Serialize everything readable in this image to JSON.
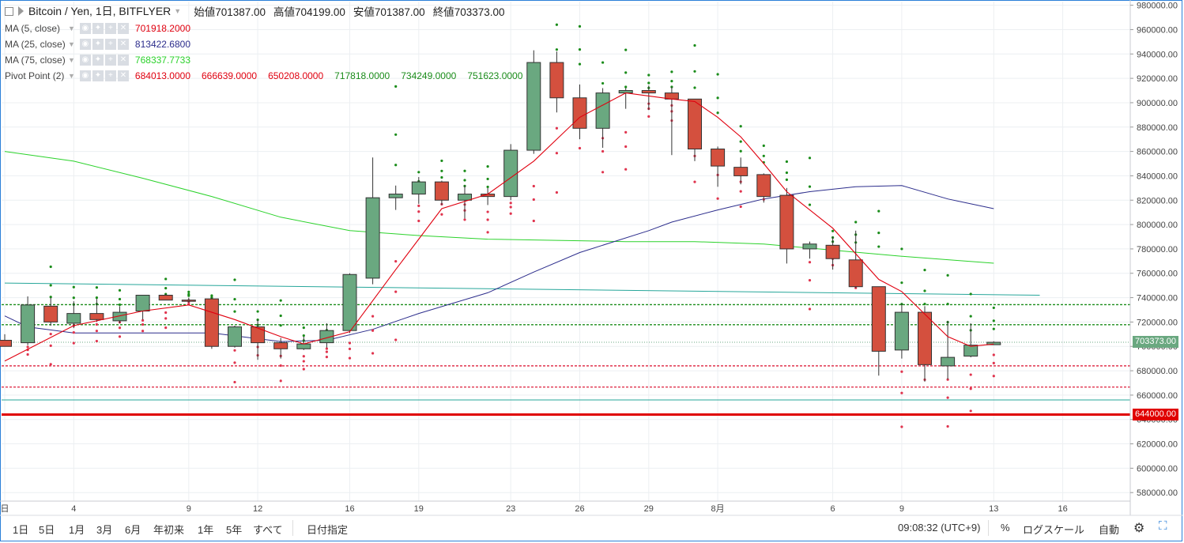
{
  "header": {
    "symbol_title": "Bitcoin / Yen, 1日, BITFLYER",
    "ohlc": [
      {
        "label": "始値",
        "value": "701387.00"
      },
      {
        "label": "高値",
        "value": "704199.00"
      },
      {
        "label": "安値",
        "value": "701387.00"
      },
      {
        "label": "終値",
        "value": "703373.00"
      }
    ]
  },
  "indicators": [
    {
      "name": "MA (5, close)",
      "values": [
        "701918.2000"
      ],
      "colors": [
        "#e0000f"
      ]
    },
    {
      "name": "MA (25, close)",
      "values": [
        "813422.6800"
      ],
      "colors": [
        "#2c2d8c"
      ]
    },
    {
      "name": "MA (75, close)",
      "values": [
        "768337.7733"
      ],
      "colors": [
        "#2bd22b"
      ]
    },
    {
      "name": "Pivot Point (2)",
      "values": [
        "684013.0000",
        "666639.0000",
        "650208.0000",
        "717818.0000",
        "734249.0000",
        "751623.0000"
      ],
      "colors": [
        "#e0000f",
        "#e0000f",
        "#e0000f",
        "#1a8c1a",
        "#1a8c1a",
        "#1a8c1a"
      ]
    }
  ],
  "price_tags": {
    "last": "703373.00",
    "line": "644000.00"
  },
  "colors": {
    "up": "#6aa880",
    "down": "#d4503e",
    "ma5": "#e0000f",
    "ma25": "#2c2d8c",
    "ma75": "#2bd22b",
    "pivot_up": "#1a8c1a",
    "pivot_down": "#e0344e",
    "teal_line": "#26a69a",
    "red_line": "#e00000"
  },
  "toolbar": {
    "ranges": [
      "1日",
      "5日",
      "1月",
      "3月",
      "6月",
      "年初来",
      "1年",
      "5年",
      "すべて"
    ],
    "goto_date": "日付指定",
    "clock": "09:08:32 (UTC+9)",
    "percent": "%",
    "log_scale": "ログスケール",
    "auto": "自動"
  },
  "chart_data": {
    "type": "candlestick",
    "y_ticks": [
      "980000.00",
      "960000.00",
      "940000.00",
      "920000.00",
      "900000.00",
      "880000.00",
      "860000.00",
      "840000.00",
      "820000.00",
      "800000.00",
      "780000.00",
      "760000.00",
      "740000.00",
      "720000.00",
      "700000.00",
      "680000.00",
      "660000.00",
      "640000.00",
      "620000.00",
      "600000.00",
      "580000.00"
    ],
    "ylim": [
      573000,
      983000
    ],
    "x_ticks": [
      {
        "i": 0,
        "label": "日"
      },
      {
        "i": 3,
        "label": "4"
      },
      {
        "i": 8,
        "label": "9"
      },
      {
        "i": 11,
        "label": "12"
      },
      {
        "i": 15,
        "label": "16"
      },
      {
        "i": 18,
        "label": "19"
      },
      {
        "i": 22,
        "label": "23"
      },
      {
        "i": 25,
        "label": "26"
      },
      {
        "i": 28,
        "label": "29"
      },
      {
        "i": 31,
        "label": "8月"
      },
      {
        "i": 36,
        "label": "6"
      },
      {
        "i": 39,
        "label": "9"
      },
      {
        "i": 43,
        "label": "13"
      },
      {
        "i": 46,
        "label": "16"
      }
    ],
    "candles": [
      {
        "o": 705000,
        "h": 710000,
        "l": 700000,
        "c": 700000
      },
      {
        "o": 703000,
        "h": 741000,
        "l": 701000,
        "c": 734000
      },
      {
        "o": 733000,
        "h": 740000,
        "l": 717000,
        "c": 720000
      },
      {
        "o": 719000,
        "h": 737000,
        "l": 715000,
        "c": 727000
      },
      {
        "o": 727000,
        "h": 739000,
        "l": 720000,
        "c": 722000
      },
      {
        "o": 721000,
        "h": 733000,
        "l": 719000,
        "c": 728000
      },
      {
        "o": 729000,
        "h": 742000,
        "l": 722000,
        "c": 742000
      },
      {
        "o": 742000,
        "h": 743000,
        "l": 738000,
        "c": 738000
      },
      {
        "o": 738000,
        "h": 740000,
        "l": 736000,
        "c": 737000
      },
      {
        "o": 739000,
        "h": 740000,
        "l": 698000,
        "c": 700000
      },
      {
        "o": 700000,
        "h": 717000,
        "l": 699000,
        "c": 716000
      },
      {
        "o": 716000,
        "h": 722000,
        "l": 689000,
        "c": 703000
      },
      {
        "o": 703000,
        "h": 707000,
        "l": 690000,
        "c": 698000
      },
      {
        "o": 698000,
        "h": 708000,
        "l": 697000,
        "c": 702000
      },
      {
        "o": 703000,
        "h": 719000,
        "l": 699000,
        "c": 713000
      },
      {
        "o": 713000,
        "h": 760000,
        "l": 711000,
        "c": 759000
      },
      {
        "o": 756000,
        "h": 855000,
        "l": 751000,
        "c": 822000
      },
      {
        "o": 822000,
        "h": 832000,
        "l": 812000,
        "c": 825000
      },
      {
        "o": 825000,
        "h": 839000,
        "l": 817000,
        "c": 835000
      },
      {
        "o": 835000,
        "h": 836000,
        "l": 816000,
        "c": 820000
      },
      {
        "o": 820000,
        "h": 832000,
        "l": 805000,
        "c": 825000
      },
      {
        "o": 825000,
        "h": 830000,
        "l": 816000,
        "c": 823000
      },
      {
        "o": 823000,
        "h": 866000,
        "l": 820000,
        "c": 861000
      },
      {
        "o": 861000,
        "h": 943000,
        "l": 858000,
        "c": 933000
      },
      {
        "o": 933000,
        "h": 942000,
        "l": 892000,
        "c": 904000
      },
      {
        "o": 904000,
        "h": 915000,
        "l": 870000,
        "c": 879000
      },
      {
        "o": 879000,
        "h": 912000,
        "l": 863000,
        "c": 908000
      },
      {
        "o": 908000,
        "h": 912000,
        "l": 895000,
        "c": 910000
      },
      {
        "o": 910000,
        "h": 914000,
        "l": 894000,
        "c": 908000
      },
      {
        "o": 908000,
        "h": 913000,
        "l": 857000,
        "c": 903000
      },
      {
        "o": 903000,
        "h": 903000,
        "l": 852000,
        "c": 862000
      },
      {
        "o": 862000,
        "h": 864000,
        "l": 831000,
        "c": 848000
      },
      {
        "o": 847000,
        "h": 855000,
        "l": 833000,
        "c": 840000
      },
      {
        "o": 841000,
        "h": 842000,
        "l": 818000,
        "c": 823000
      },
      {
        "o": 824000,
        "h": 830000,
        "l": 768000,
        "c": 780000
      },
      {
        "o": 780000,
        "h": 786000,
        "l": 772000,
        "c": 784000
      },
      {
        "o": 783000,
        "h": 790000,
        "l": 763000,
        "c": 772000
      },
      {
        "o": 771000,
        "h": 795000,
        "l": 748000,
        "c": 749000
      },
      {
        "o": 749000,
        "h": 749000,
        "l": 676000,
        "c": 696000
      },
      {
        "o": 697000,
        "h": 735000,
        "l": 690000,
        "c": 728000
      },
      {
        "o": 728000,
        "h": 733000,
        "l": 671000,
        "c": 685000
      },
      {
        "o": 684000,
        "h": 721000,
        "l": 673000,
        "c": 691000
      },
      {
        "o": 692000,
        "h": 719000,
        "l": 691000,
        "c": 701000
      },
      {
        "o": 701387,
        "h": 704199,
        "l": 701387,
        "c": 703373
      }
    ],
    "ma5": [
      [
        0,
        688000
      ],
      [
        3,
        717000
      ],
      [
        6,
        729000
      ],
      [
        8,
        734000
      ],
      [
        10,
        722000
      ],
      [
        12,
        708000
      ],
      [
        13,
        702000
      ],
      [
        15,
        712000
      ],
      [
        17,
        763000
      ],
      [
        19,
        813000
      ],
      [
        21,
        825000
      ],
      [
        23,
        852000
      ],
      [
        25,
        888000
      ],
      [
        27,
        908000
      ],
      [
        29,
        903000
      ],
      [
        30,
        901000
      ],
      [
        31,
        888000
      ],
      [
        32,
        872000
      ],
      [
        33,
        850000
      ],
      [
        34,
        827000
      ],
      [
        36,
        797000
      ],
      [
        38,
        755000
      ],
      [
        39,
        745000
      ],
      [
        41,
        708000
      ],
      [
        42,
        700000
      ],
      [
        43,
        701900
      ]
    ],
    "ma25": [
      [
        0,
        725000
      ],
      [
        1,
        716000
      ],
      [
        3,
        711000
      ],
      [
        6,
        711000
      ],
      [
        9,
        711000
      ],
      [
        12,
        704000
      ],
      [
        14,
        705000
      ],
      [
        16,
        714000
      ],
      [
        18,
        727000
      ],
      [
        21,
        744000
      ],
      [
        23,
        761000
      ],
      [
        25,
        777000
      ],
      [
        28,
        795000
      ],
      [
        29,
        802000
      ],
      [
        31,
        812000
      ],
      [
        33,
        821000
      ],
      [
        35,
        827000
      ],
      [
        37,
        831000
      ],
      [
        39,
        832000
      ],
      [
        41,
        821000
      ],
      [
        43,
        813000
      ]
    ],
    "ma75": [
      [
        0,
        860000
      ],
      [
        3,
        852000
      ],
      [
        6,
        838000
      ],
      [
        9,
        823000
      ],
      [
        12,
        806000
      ],
      [
        15,
        795000
      ],
      [
        18,
        791000
      ],
      [
        21,
        788000
      ],
      [
        24,
        787000
      ],
      [
        27,
        786000
      ],
      [
        30,
        786000
      ],
      [
        33,
        784000
      ],
      [
        36,
        779000
      ],
      [
        39,
        774000
      ],
      [
        43,
        768300
      ]
    ],
    "teal_line": [
      [
        0,
        752000
      ],
      [
        45,
        742000
      ]
    ],
    "horizontal_lines": {
      "pivot_resistance": [
        734249,
        717818
      ],
      "last_price": 703373,
      "pivot_support": [
        684013,
        666639
      ],
      "teal": 656000,
      "red": 644000
    }
  }
}
